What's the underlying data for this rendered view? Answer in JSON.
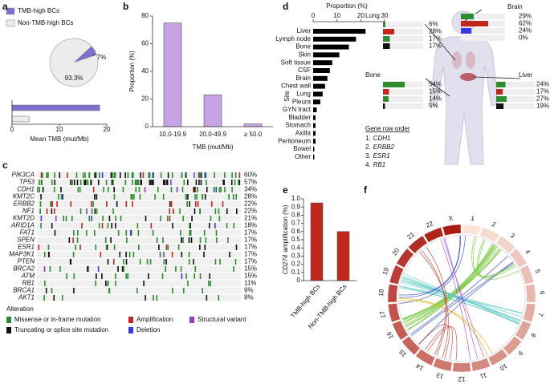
{
  "chart_data": [
    {
      "type": "pie",
      "panel": "a",
      "categories": [
        "TMB-high BCs",
        "Non-TMB-high BCs"
      ],
      "values": [
        6.7,
        93.3
      ],
      "value_labels": [
        "6.7%",
        "93.3%"
      ],
      "colors": [
        "#7d6fd0",
        "#ececec"
      ]
    },
    {
      "type": "hbar",
      "categories": [
        null,
        null
      ],
      "values": [
        18.5,
        3.6
      ],
      "colors": [
        "#7d6fd0",
        "#ececec"
      ],
      "xlim": [
        0,
        20
      ],
      "xticks": [
        0,
        10,
        20
      ],
      "xlabel": "Mean TMB (mut/Mb)"
    },
    {
      "type": "bar",
      "panel": "b",
      "categories": [
        "10.0-19.9",
        "20.0-49.9",
        "≥ 50.0"
      ],
      "values": [
        75,
        23,
        2
      ],
      "color": "#c7a3e6",
      "ylim": [
        0,
        80
      ],
      "yticks": [
        0,
        20,
        40,
        60,
        80
      ],
      "ylabel": "Proportion (%)",
      "xlabel": "TMB (mut/Mb)"
    },
    {
      "type": "oncoprint",
      "panel": "c",
      "genes": [
        "PIK3CA",
        "TP53",
        "CDH1",
        "KMT2C",
        "ERBB2",
        "NF1",
        "KMT2D",
        "ARID1A",
        "FAT1",
        "SPEN",
        "ESR1",
        "MAP3K1",
        "PTEN",
        "BRCA2",
        "ATM",
        "RB1",
        "BRCA1",
        "AKT1"
      ],
      "values": [
        60,
        57,
        34,
        28,
        22,
        22,
        21,
        18,
        17,
        17,
        17,
        17,
        17,
        15,
        15,
        11,
        9,
        8
      ],
      "value_labels": [
        "60%",
        "57%",
        "34%",
        "28%",
        "22%",
        "22%",
        "21%",
        "18%",
        "17%",
        "17%",
        "17%",
        "17%",
        "17%",
        "15%",
        "15%",
        "11%",
        "9%",
        "8%"
      ],
      "legend_title": "Alteration",
      "legend": [
        {
          "name": "Missense or in-frame mutation",
          "color": "#2e8b2e"
        },
        {
          "name": "Truncating or splice site mutation",
          "color": "#111111"
        },
        {
          "name": "Amplification",
          "color": "#c0281e"
        },
        {
          "name": "Deletion",
          "color": "#3a3ae0"
        },
        {
          "name": "Structural variant",
          "color": "#8a3fc0"
        }
      ]
    },
    {
      "type": "hbar",
      "panel": "d",
      "categories": [
        "Liver",
        "Lymph node",
        "Bone",
        "Skin",
        "Soft tissue",
        "CSF",
        "Brain",
        "Chest wall",
        "Lung",
        "Pleura",
        "GYN tract",
        "Bladder",
        "Stomach",
        "Axilla",
        "Peritoneum",
        "Bowel",
        "Other"
      ],
      "values": [
        22,
        18,
        15,
        11,
        8,
        7,
        6,
        5,
        4,
        3,
        1.5,
        1,
        1,
        1,
        1,
        0.5,
        0.5
      ],
      "color": "#000000",
      "xlim": [
        0,
        30
      ],
      "xticks": [
        0,
        10,
        20,
        30
      ],
      "xlabel": "Proportion (%)",
      "ylabel": "Site",
      "gene_row_order_title": "Gene row order",
      "gene_row_order": [
        {
          "number": "1.",
          "gene": "CDH1"
        },
        {
          "number": "2.",
          "gene": "ERBB2"
        },
        {
          "number": "3.",
          "gene": "ESR1"
        },
        {
          "number": "4.",
          "gene": "RB1"
        }
      ]
    },
    {
      "type": "oncoprint-mini",
      "title": "Lung",
      "values": [
        6,
        28,
        17,
        17
      ],
      "value_labels": [
        "6%",
        "28%",
        "17%",
        "17%"
      ],
      "colors": [
        "#2e8b2e",
        "#c0281e",
        "#2e8b2e",
        "#111111"
      ]
    },
    {
      "type": "oncoprint-mini",
      "title": "Brain",
      "values": [
        29,
        62,
        24,
        0
      ],
      "value_labels": [
        "29%",
        "62%",
        "24%",
        "0%"
      ],
      "colors": [
        "#2e8b2e",
        "#c0281e",
        "#3a3ae0",
        "#111111"
      ]
    },
    {
      "type": "oncoprint-mini",
      "title": "Bone",
      "values": [
        54,
        15,
        14,
        5
      ],
      "value_labels": [
        "54%",
        "15%",
        "14%",
        "5%"
      ],
      "colors": [
        "#2e8b2e",
        "#c0281e",
        "#2e8b2e",
        "#111111"
      ]
    },
    {
      "type": "oncoprint-mini",
      "title": "Liver",
      "values": [
        24,
        17,
        27,
        19
      ],
      "value_labels": [
        "24%",
        "17%",
        "27%",
        "19%"
      ],
      "colors": [
        "#2e8b2e",
        "#c0281e",
        "#2e8b2e",
        "#111111"
      ]
    },
    {
      "type": "bar",
      "panel": "e",
      "categories": [
        "TMB-high BCs",
        "Non-TMB-high BCs"
      ],
      "values": [
        0.95,
        0.6
      ],
      "color": "#c0281e",
      "ylim": [
        0,
        1
      ],
      "yticks": [
        0,
        0.1,
        0.2,
        0.3,
        0.4,
        0.5,
        0.6,
        0.7,
        0.8,
        0.9,
        {
          "value": 1,
          "label": "1.0"
        }
      ],
      "ylabel_gene": "CD274",
      "ylabel": "amplification (%)"
    },
    {
      "type": "circos",
      "panel": "f",
      "chromosomes": [
        "1",
        "2",
        "3",
        "4",
        "5",
        "6",
        "7",
        "8",
        "9",
        "10",
        "11",
        "12",
        "13",
        "14",
        "15",
        "16",
        "17",
        "18",
        "19",
        "20",
        "21",
        "22",
        "X"
      ]
    }
  ]
}
